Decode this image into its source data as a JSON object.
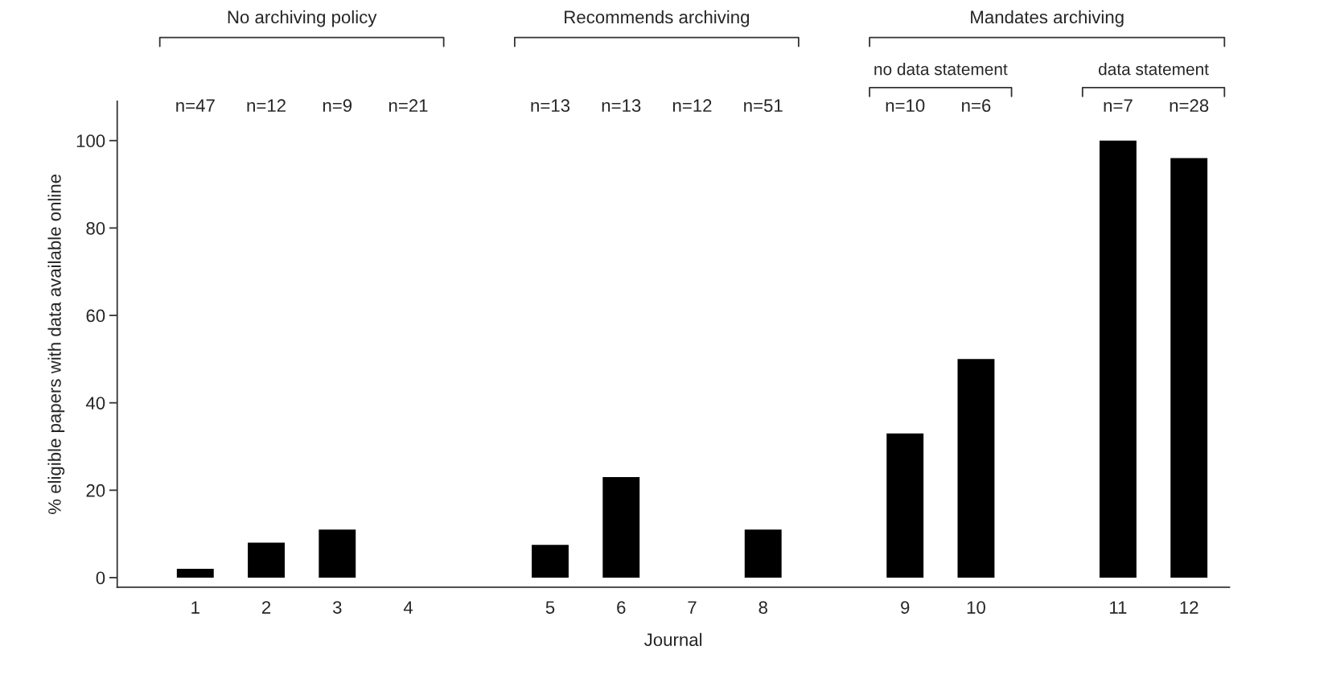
{
  "chart_data": {
    "type": "bar",
    "xlabel": "Journal",
    "ylabel": "% eligible papers with data available online",
    "categories": [
      "1",
      "2",
      "3",
      "4",
      null,
      "5",
      "6",
      "7",
      "8",
      null,
      "9",
      "10",
      null,
      "11",
      "12"
    ],
    "values": [
      2,
      8,
      11,
      0,
      null,
      7.5,
      23,
      0,
      11,
      null,
      33,
      50,
      null,
      100,
      96
    ],
    "color": "#000000",
    "ylim": [
      -2.2,
      109
    ],
    "yticks": [
      0,
      20,
      40,
      60,
      80,
      100
    ],
    "grid": false,
    "annotations": [
      "n=47",
      "n=12",
      "n=9",
      "n=21",
      "n=13",
      "n=13",
      "n=12",
      "n=51",
      "n=10",
      "n=6",
      "n=7",
      "n=28",
      "No archiving policy",
      "Recommends archiving",
      "Mandates archiving",
      "no data statement",
      "data statement"
    ]
  }
}
